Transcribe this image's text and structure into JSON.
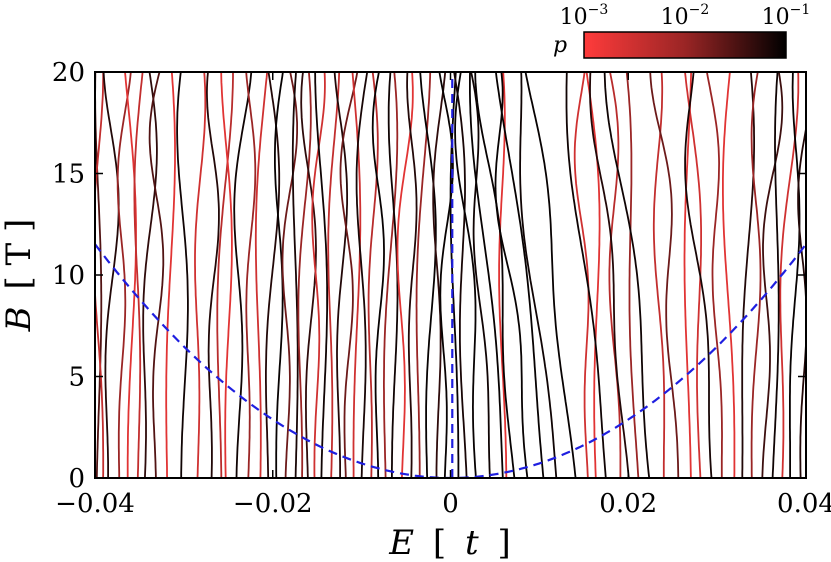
{
  "chart_data": {
    "type": "line",
    "xlabel": "E [ t ]",
    "xlabel_parts": {
      "var": "E",
      "open": "[",
      "unit": "t",
      "close": "]"
    },
    "ylabel": "B [T]",
    "ylabel_parts": {
      "var": "B",
      "open": "[",
      "unit": "T",
      "close": "]"
    },
    "xlim": [
      -0.04,
      0.04
    ],
    "ylim": [
      0,
      20
    ],
    "xticks": [
      -0.04,
      -0.02,
      0,
      0.02,
      0.04
    ],
    "xtick_labels": [
      "−0.04",
      "−0.02",
      "0",
      "0.02",
      "0.04"
    ],
    "yticks": [
      0,
      5,
      10,
      15,
      20
    ],
    "ytick_labels": [
      "0",
      "5",
      "10",
      "15",
      "20"
    ],
    "grid": false,
    "colorbar": {
      "label": "p",
      "scale": "log",
      "range": [
        0.001,
        0.1
      ],
      "tick_labels": [
        {
          "base": "10",
          "exp": "−3"
        },
        {
          "base": "10",
          "exp": "−2"
        },
        {
          "base": "10",
          "exp": "−1"
        }
      ],
      "colors": [
        "#ff3b3b",
        "#9a2525",
        "#000000"
      ]
    },
    "boundary_curve": {
      "style": "dashed",
      "color": "#1f1fe0",
      "formula": "B = 7200 * E^2",
      "E_range": [
        -0.04,
        0.04
      ]
    },
    "central_line": {
      "color": "#1f1fe0",
      "style": "dashed",
      "E": 0.0002
    },
    "levels": [
      {
        "E0": -0.0398,
        "p": 0.03,
        "drift": 0.0005
      },
      {
        "E0": -0.0392,
        "p": 0.004,
        "drift": -0.0008
      },
      {
        "E0": -0.0386,
        "p": 0.06,
        "drift": 0.0007
      },
      {
        "E0": -0.0372,
        "p": 0.01,
        "drift": 0.0005
      },
      {
        "E0": -0.0362,
        "p": 0.002,
        "drift": 0.0003
      },
      {
        "E0": -0.0352,
        "p": 0.004,
        "drift": 0.0002
      },
      {
        "E0": -0.0345,
        "p": 0.05,
        "drift": 0.0009
      },
      {
        "E0": -0.0332,
        "p": 0.03,
        "drift": 0.0004
      },
      {
        "E0": -0.0318,
        "p": 0.002,
        "drift": 0.0002
      },
      {
        "E0": -0.0302,
        "p": 0.08,
        "drift": 0.0004
      },
      {
        "E0": -0.0285,
        "p": 0.003,
        "drift": 0.0003
      },
      {
        "E0": -0.027,
        "p": 0.06,
        "drift": 0.0005
      },
      {
        "E0": -0.0258,
        "p": 0.005,
        "drift": 0.0002
      },
      {
        "E0": -0.0252,
        "p": 0.002,
        "drift": 0.0002
      },
      {
        "E0": -0.024,
        "p": 0.08,
        "drift": 0.0006
      },
      {
        "E0": -0.0228,
        "p": 0.01,
        "drift": 0.0004
      },
      {
        "E0": -0.0215,
        "p": 0.003,
        "drift": 0.0003
      },
      {
        "E0": -0.0205,
        "p": 0.06,
        "drift": 0.0005
      },
      {
        "E0": -0.0195,
        "p": 0.09,
        "drift": 0.0005
      },
      {
        "E0": -0.0185,
        "p": 0.02,
        "drift": 0.0004
      },
      {
        "E0": -0.0175,
        "p": 0.07,
        "drift": 0.0004
      },
      {
        "E0": -0.0168,
        "p": 0.01,
        "drift": 0.0003
      },
      {
        "E0": -0.016,
        "p": 0.05,
        "drift": 0.0003
      },
      {
        "E0": -0.0152,
        "p": 0.003,
        "drift": 0.0003
      },
      {
        "E0": -0.0145,
        "p": 0.08,
        "drift": 0.0003
      },
      {
        "E0": -0.0135,
        "p": 0.004,
        "drift": 0.0003
      },
      {
        "E0": -0.0125,
        "p": 0.06,
        "drift": 0.0003
      },
      {
        "E0": -0.0117,
        "p": 0.02,
        "drift": 0.0003
      },
      {
        "E0": -0.0108,
        "p": 0.003,
        "drift": 0.0002
      },
      {
        "E0": -0.01,
        "p": 0.07,
        "drift": 0.0003
      },
      {
        "E0": -0.009,
        "p": 0.005,
        "drift": 0.0003
      },
      {
        "E0": -0.0082,
        "p": 0.09,
        "drift": 0.0003
      },
      {
        "E0": -0.0072,
        "p": 0.01,
        "drift": 0.0003
      },
      {
        "E0": -0.0065,
        "p": 0.08,
        "drift": 0.0003
      },
      {
        "E0": -0.0055,
        "p": 0.002,
        "drift": 0.0003
      },
      {
        "E0": -0.0045,
        "p": 0.06,
        "drift": 0.0003
      },
      {
        "E0": -0.0035,
        "p": 0.01,
        "drift": 0.0003
      },
      {
        "E0": -0.0025,
        "p": 0.09,
        "drift": 0.0002
      },
      {
        "E0": -0.0015,
        "p": 0.05,
        "drift": 0.0002
      },
      {
        "E0": -0.0007,
        "p": 0.09,
        "drift": 0.0002
      },
      {
        "E0": 0.0008,
        "p": 0.09,
        "drift": -0.0005
      },
      {
        "E0": 0.0018,
        "p": 0.07,
        "drift": -0.0012
      },
      {
        "E0": 0.003,
        "p": 0.09,
        "drift": -0.0018
      },
      {
        "E0": 0.0045,
        "p": 0.08,
        "drift": -0.0024
      },
      {
        "E0": 0.0058,
        "p": 0.09,
        "drift": -0.003
      },
      {
        "E0": 0.0062,
        "p": 0.002,
        "drift": -0.0008
      },
      {
        "E0": 0.0072,
        "p": 0.09,
        "drift": -0.0036
      },
      {
        "E0": 0.0088,
        "p": 0.09,
        "drift": -0.0042
      },
      {
        "E0": 0.0105,
        "p": 0.09,
        "drift": -0.0046
      },
      {
        "E0": 0.0118,
        "p": 0.08,
        "drift": -0.0048
      },
      {
        "E0": 0.014,
        "p": 0.09,
        "drift": -0.005
      },
      {
        "E0": 0.0155,
        "p": 0.003,
        "drift": -0.001
      },
      {
        "E0": 0.0165,
        "p": 0.002,
        "drift": -0.0008
      },
      {
        "E0": 0.0175,
        "p": 0.08,
        "drift": -0.0045
      },
      {
        "E0": 0.019,
        "p": 0.005,
        "drift": -0.0012
      },
      {
        "E0": 0.02,
        "p": 0.06,
        "drift": -0.004
      },
      {
        "E0": 0.0212,
        "p": 0.01,
        "drift": -0.002
      },
      {
        "E0": 0.0225,
        "p": 0.08,
        "drift": -0.0042
      },
      {
        "E0": 0.024,
        "p": 0.004,
        "drift": -0.001
      },
      {
        "E0": 0.0255,
        "p": 0.02,
        "drift": -0.002
      },
      {
        "E0": 0.027,
        "p": 0.002,
        "drift": -0.0006
      },
      {
        "E0": 0.0282,
        "p": 0.003,
        "drift": -0.001
      },
      {
        "E0": 0.0295,
        "p": 0.07,
        "drift": -0.003
      },
      {
        "E0": 0.0305,
        "p": 0.01,
        "drift": -0.0012
      },
      {
        "E0": 0.0318,
        "p": 0.002,
        "drift": -0.0006
      },
      {
        "E0": 0.0328,
        "p": 0.06,
        "drift": 0.001
      },
      {
        "E0": 0.034,
        "p": 0.01,
        "drift": 0.0008
      },
      {
        "E0": 0.0352,
        "p": 0.04,
        "drift": 0.0012
      },
      {
        "E0": 0.0362,
        "p": 0.08,
        "drift": 0.0012
      },
      {
        "E0": 0.0372,
        "p": 0.003,
        "drift": 0.001
      },
      {
        "E0": 0.0382,
        "p": 0.09,
        "drift": 0.001
      },
      {
        "E0": 0.0395,
        "p": 0.06,
        "drift": 0.0004
      }
    ]
  }
}
